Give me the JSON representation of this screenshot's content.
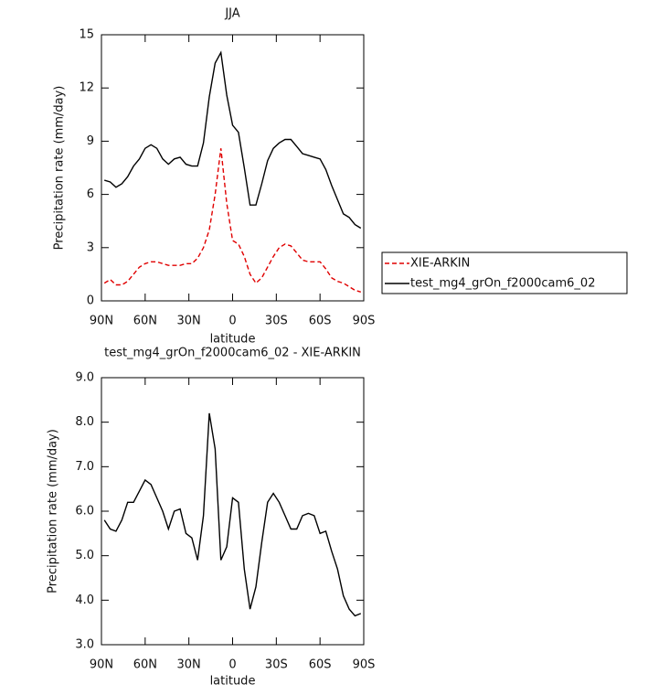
{
  "chart_data": [
    {
      "type": "line",
      "title": "JJA",
      "xlabel": "latitude",
      "ylabel": "Precipitation rate (mm/day)",
      "x": [
        88,
        84,
        80,
        76,
        72,
        68,
        64,
        60,
        56,
        52,
        48,
        44,
        40,
        36,
        32,
        28,
        24,
        20,
        16,
        12,
        8,
        4,
        0,
        -4,
        -8,
        -12,
        -16,
        -20,
        -24,
        -28,
        -32,
        -36,
        -40,
        -44,
        -48,
        -52,
        -56,
        -60,
        -64,
        -68,
        -72,
        -76,
        -80,
        -84,
        -88
      ],
      "series": [
        {
          "name": "XIE-ARKIN",
          "color": "#e00000",
          "linestyle": "dashed",
          "values": [
            1.0,
            1.2,
            0.9,
            0.9,
            1.1,
            1.5,
            1.9,
            2.1,
            2.2,
            2.2,
            2.1,
            2.0,
            2.0,
            2.0,
            2.1,
            2.1,
            2.4,
            3.0,
            4.0,
            6.0,
            8.6,
            5.5,
            3.4,
            3.2,
            2.5,
            1.5,
            1.0,
            1.3,
            1.9,
            2.5,
            3.0,
            3.2,
            3.1,
            2.7,
            2.3,
            2.2,
            2.2,
            2.2,
            1.8,
            1.3,
            1.1,
            1.0,
            0.8,
            0.6,
            0.5
          ]
        },
        {
          "name": "test_mg4_grOn_f2000cam6_02",
          "color": "#000000",
          "linestyle": "solid",
          "values": [
            6.8,
            6.7,
            6.4,
            6.6,
            7.0,
            7.6,
            8.0,
            8.6,
            8.8,
            8.6,
            8.0,
            7.7,
            8.0,
            8.1,
            7.7,
            7.6,
            7.6,
            8.9,
            11.5,
            13.4,
            14.0,
            11.6,
            9.9,
            9.5,
            7.5,
            5.4,
            5.4,
            6.6,
            7.9,
            8.6,
            8.9,
            9.1,
            9.1,
            8.7,
            8.3,
            8.2,
            8.1,
            8.0,
            7.4,
            6.5,
            5.7,
            4.9,
            4.7,
            4.3,
            4.1
          ]
        }
      ],
      "xlim": [
        90,
        -90
      ],
      "xticks": [
        {
          "value": 90,
          "label": "90N"
        },
        {
          "value": 60,
          "label": "60N"
        },
        {
          "value": 30,
          "label": "30N"
        },
        0,
        {
          "value": -30,
          "label": "30S"
        },
        {
          "value": -60,
          "label": "60S"
        },
        {
          "value": -90,
          "label": "90S"
        }
      ],
      "ylim": [
        0,
        15
      ],
      "yticks": [
        0,
        3,
        6,
        9,
        12,
        15
      ],
      "legend": "outside-right"
    },
    {
      "type": "line",
      "title": "test_mg4_grOn_f2000cam6_02 - XIE-ARKIN",
      "xlabel": "latitude",
      "ylabel": "Precipitation rate (mm/day)",
      "x": [
        88,
        84,
        80,
        76,
        72,
        68,
        64,
        60,
        56,
        52,
        48,
        44,
        40,
        36,
        32,
        28,
        24,
        20,
        16,
        12,
        8,
        4,
        0,
        -4,
        -8,
        -12,
        -16,
        -20,
        -24,
        -28,
        -32,
        -36,
        -40,
        -44,
        -48,
        -52,
        -56,
        -60,
        -64,
        -68,
        -72,
        -76,
        -80,
        -84,
        -88
      ],
      "values": [
        5.8,
        5.6,
        5.55,
        5.8,
        6.2,
        6.2,
        6.45,
        6.7,
        6.6,
        6.3,
        6.0,
        5.6,
        6.0,
        6.05,
        5.5,
        5.4,
        4.9,
        5.9,
        8.2,
        7.4,
        4.9,
        5.2,
        6.3,
        6.2,
        4.7,
        3.8,
        4.3,
        5.3,
        6.2,
        6.4,
        6.2,
        5.9,
        5.6,
        5.6,
        5.9,
        5.95,
        5.9,
        5.5,
        5.55,
        5.1,
        4.7,
        4.1,
        3.8,
        3.65,
        3.7
      ],
      "color": "#000000",
      "xlim": [
        90,
        -90
      ],
      "xticks": [
        {
          "value": 90,
          "label": "90N"
        },
        {
          "value": 60,
          "label": "60N"
        },
        {
          "value": 30,
          "label": "30N"
        },
        0,
        {
          "value": -30,
          "label": "30S"
        },
        {
          "value": -60,
          "label": "60S"
        },
        {
          "value": -90,
          "label": "90S"
        }
      ],
      "ylim": [
        3,
        9
      ],
      "yticks": [
        {
          "value": 3,
          "label": "3.0"
        },
        {
          "value": 4,
          "label": "4.0"
        },
        {
          "value": 5,
          "label": "5.0"
        },
        {
          "value": 6,
          "label": "6.0"
        },
        {
          "value": 7,
          "label": "7.0"
        },
        {
          "value": 8,
          "label": "8.0"
        },
        {
          "value": 9,
          "label": "9.0"
        }
      ]
    }
  ]
}
